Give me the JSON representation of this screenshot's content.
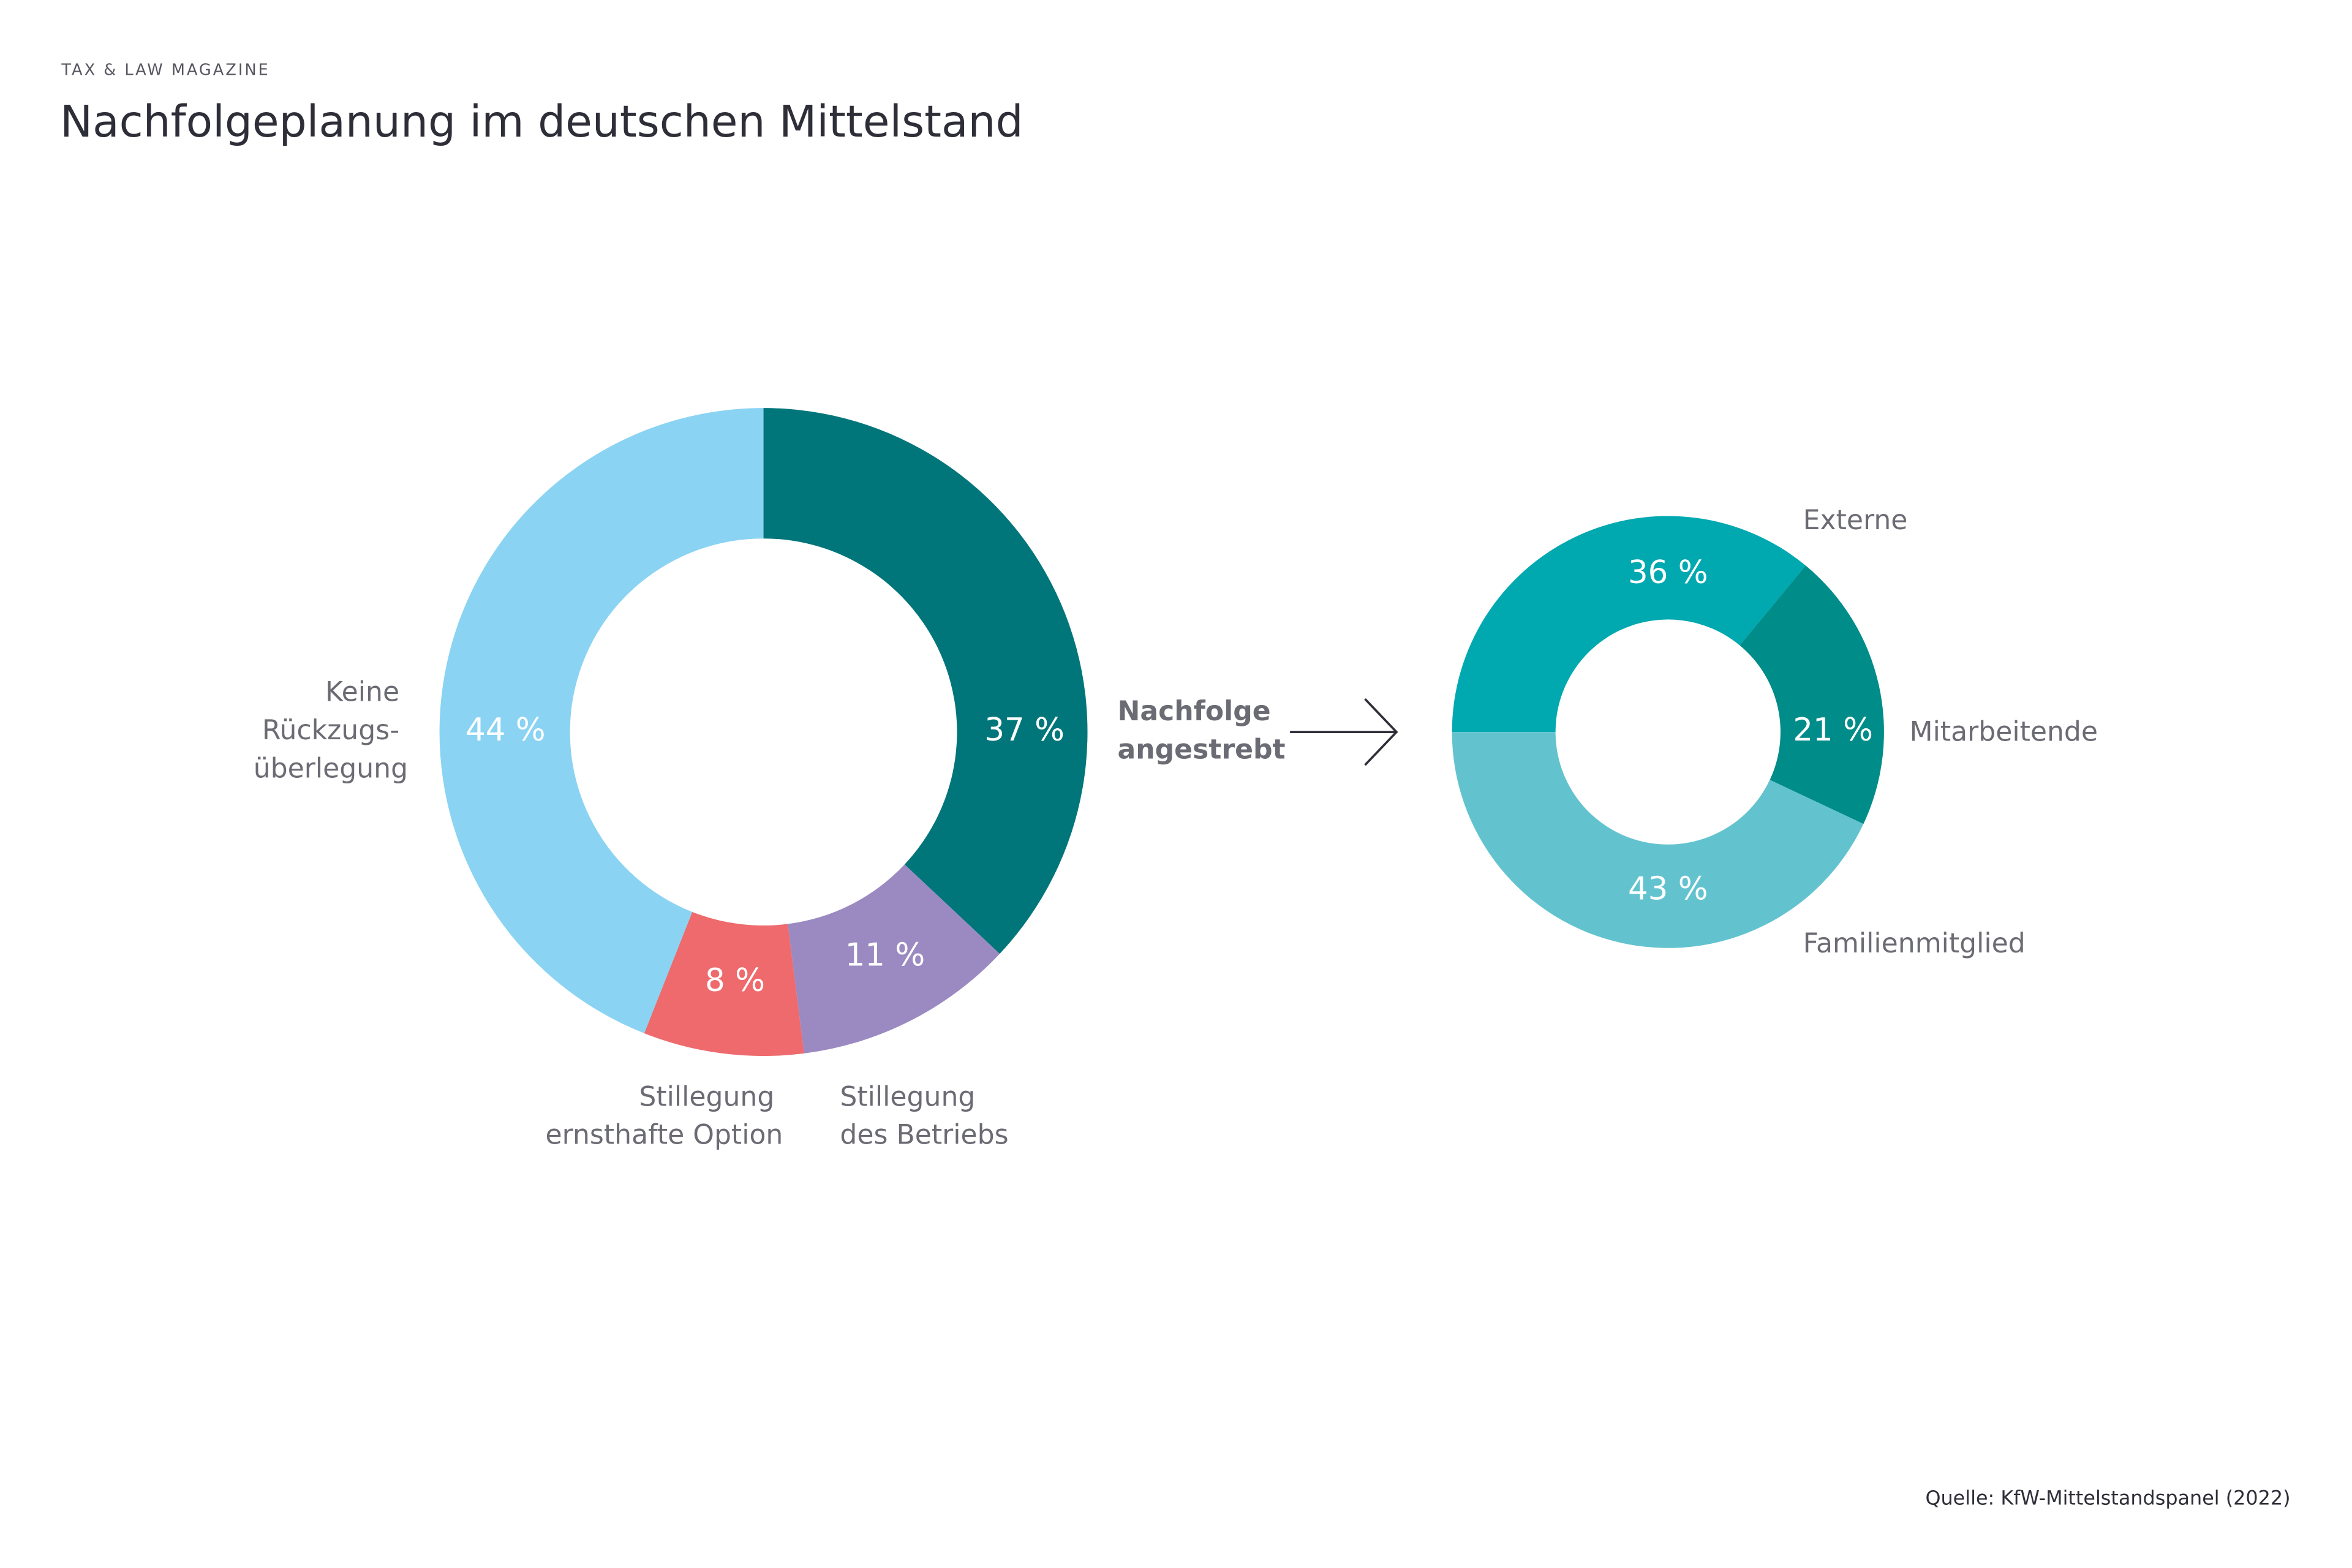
{
  "header": {
    "kicker": "TAX & LAW MAGAZINE",
    "title": "Nachfolgeplanung im deutschen Mittelstand"
  },
  "chart_data": [
    {
      "type": "pie",
      "donut": true,
      "categories": [
        "Nachfolge\nangestrebt",
        "Stillegung\ndes Betriebs",
        "Stillegung\nernsthafte Option",
        "Keine\nRückzugs-\nüberlegung"
      ],
      "values": [
        37,
        11,
        8,
        44
      ],
      "value_labels": [
        "37 %",
        "11 %",
        "8 %",
        "44 %"
      ],
      "colors": [
        "#00757a",
        "#9b8ac1",
        "#ee6a6d",
        "#8ad3f3"
      ]
    },
    {
      "type": "pie",
      "donut": true,
      "categories": [
        "Externe",
        "Mitarbeitende",
        "Familienmitglied"
      ],
      "values": [
        36,
        21,
        43
      ],
      "value_labels": [
        "36 %",
        "21 %",
        "43 %"
      ],
      "colors": [
        "#00a8b0",
        "#008c89",
        "#62c3cf"
      ]
    }
  ],
  "footer": {
    "source": "Quelle: KfW-Mittelstandspanel (2022)"
  }
}
